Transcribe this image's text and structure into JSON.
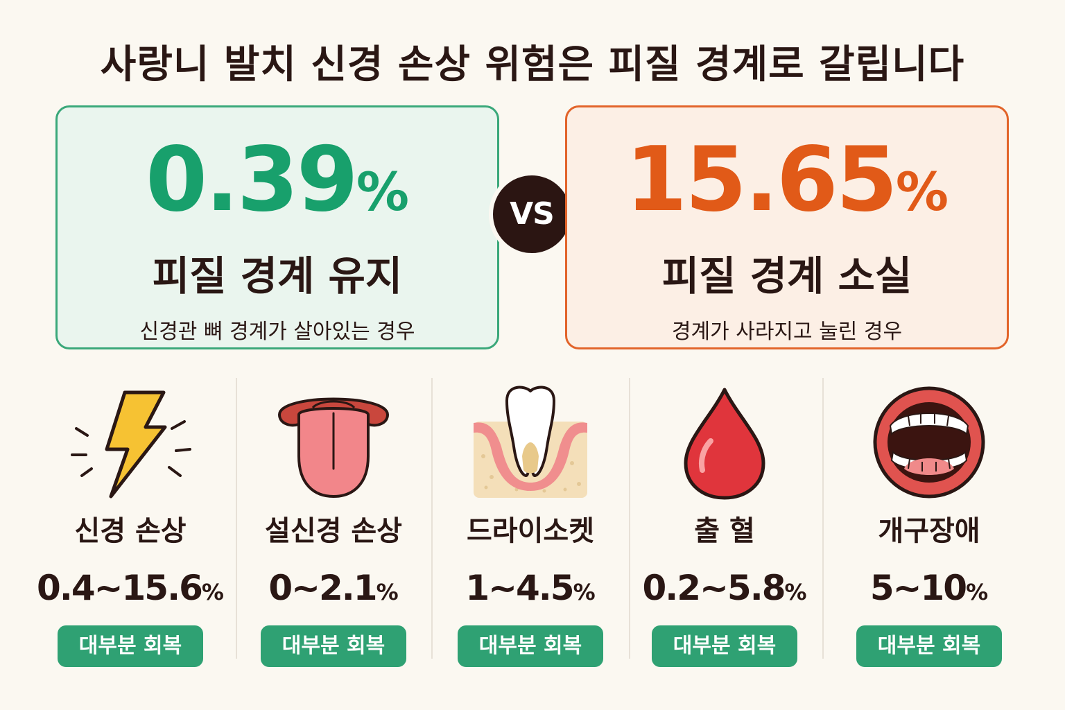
{
  "title": "사랑니 발치 신경 손상 위험은 피질 경계로 갈립니다",
  "comparison": {
    "left": {
      "value": "0.39",
      "unit": "%",
      "heading": "피질 경계 유지",
      "description": "신경관 뼈 경계가 살아있는 경우",
      "color": "#18a06c"
    },
    "vs_label": "VS",
    "right": {
      "value": "15.65",
      "unit": "%",
      "heading": "피질 경계 소실",
      "description": "경계가 사라지고 눌린 경우",
      "color": "#e15a18"
    }
  },
  "complications": [
    {
      "icon": "lightning-icon",
      "name": "신경 손상",
      "range": "0.4~15.6",
      "unit": "%",
      "badge": "대부분 회복"
    },
    {
      "icon": "tongue-icon",
      "name": "설신경 손상",
      "range": "0~2.1",
      "unit": "%",
      "badge": "대부분 회복"
    },
    {
      "icon": "tooth-socket-icon",
      "name": "드라이소켓",
      "range": "1~4.5",
      "unit": "%",
      "badge": "대부분 회복"
    },
    {
      "icon": "blood-drop-icon",
      "name": "출 혈",
      "range": "0.2~5.8",
      "unit": "%",
      "badge": "대부분 회복"
    },
    {
      "icon": "open-mouth-icon",
      "name": "개구장애",
      "range": "5~10",
      "unit": "%",
      "badge": "대부분 회복"
    }
  ]
}
